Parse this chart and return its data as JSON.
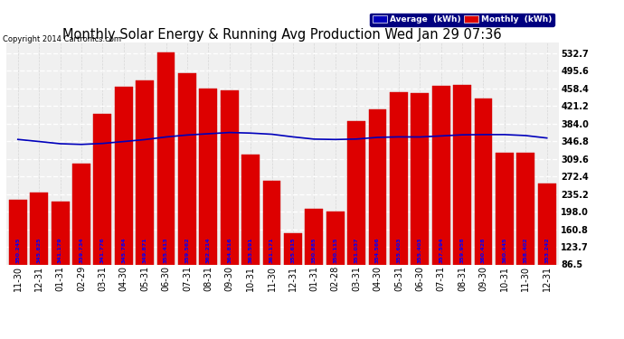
{
  "title": "Monthly Solar Energy & Running Avg Production Wed Jan 29 07:36",
  "copyright": "Copyright 2014 Cartronics.com",
  "categories": [
    "11-30",
    "12-31",
    "01-31",
    "02-29",
    "03-31",
    "04-30",
    "05-31",
    "06-30",
    "07-31",
    "08-31",
    "09-30",
    "10-31",
    "11-30",
    "12-31",
    "01-31",
    "02-28",
    "03-31",
    "04-30",
    "05-31",
    "06-30",
    "07-31",
    "08-31",
    "09-30",
    "10-31",
    "11-30",
    "12-31"
  ],
  "monthly_values": [
    222.0,
    238.0,
    220.0,
    300.0,
    405.0,
    462.0,
    475.0,
    533.0,
    490.0,
    457.0,
    453.0,
    318.0,
    262.0,
    153.0,
    204.0,
    198.0,
    388.0,
    413.0,
    450.0,
    448.0,
    463.0,
    465.0,
    436.0,
    322.0,
    322.0,
    258.0
  ],
  "avg_values": [
    350.245,
    345.825,
    341.179,
    339.734,
    341.776,
    345.784,
    349.871,
    355.413,
    359.562,
    362.214,
    364.816,
    363.591,
    361.171,
    355.615,
    350.885,
    350.115,
    351.037,
    354.566,
    355.603,
    355.403,
    357.594,
    359.958,
    360.428,
    360.445,
    358.402,
    353.242
  ],
  "bar_color": "#dd0000",
  "bar_edge_color": "#cc0000",
  "avg_line_color": "#0000bb",
  "background_color": "#ffffff",
  "plot_bg_color": "#f0f0f0",
  "grid_color": "#cccccc",
  "yticks": [
    86.5,
    123.7,
    160.8,
    198.0,
    235.2,
    272.4,
    309.6,
    346.8,
    384.0,
    421.2,
    458.4,
    495.6,
    532.7
  ],
  "ylim": [
    86.5,
    555.0
  ],
  "legend_avg_label": "Average  (kWh)",
  "legend_monthly_label": "Monthly  (kWh)",
  "title_fontsize": 10.5,
  "tick_fontsize": 7,
  "avg_label_color": "#0000ff",
  "bar_label_fontsize": 4.5
}
